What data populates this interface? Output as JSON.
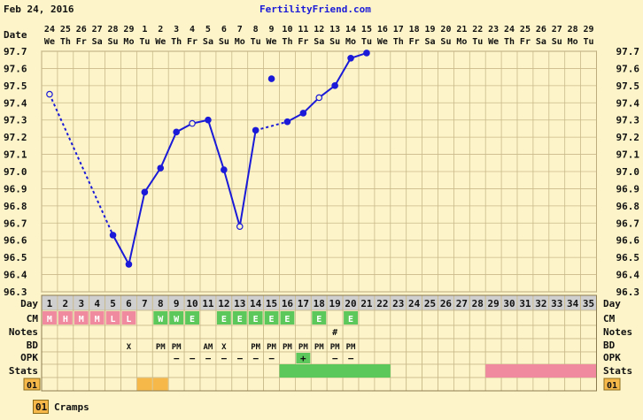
{
  "header": {
    "date": "Feb 24, 2016",
    "site": "FertilityFriend.com"
  },
  "row_labels": {
    "date": "Date",
    "day": "Day",
    "cm": "CM",
    "notes": "Notes",
    "bd": "BD",
    "opk": "OPK",
    "stats": "Stats",
    "custom": "01"
  },
  "legend": {
    "badge": "01",
    "label": "Cramps"
  },
  "colors": {
    "background": "#fdf5c9",
    "line": "#1a1ad8",
    "grid": "#c9b98a",
    "menstrual": "#f08a9e",
    "green": "#5cc85c",
    "orange": "#f7b84a",
    "day_row": "#cfcfcf",
    "link": "#1a1ad8"
  },
  "chart_data": {
    "type": "line",
    "title": "",
    "xlabel": "",
    "ylabel": "",
    "ylim": [
      96.3,
      97.7
    ],
    "y_ticks": [
      "97.7",
      "97.6",
      "97.5",
      "97.4",
      "97.3",
      "97.2",
      "97.1",
      "97.0",
      "96.9",
      "96.8",
      "96.7",
      "96.6",
      "96.5",
      "96.4",
      "96.3"
    ],
    "dates": [
      "24",
      "25",
      "26",
      "27",
      "28",
      "29",
      "1",
      "2",
      "3",
      "4",
      "5",
      "6",
      "7",
      "8",
      "9",
      "10",
      "11",
      "12",
      "13",
      "14",
      "15",
      "16",
      "17",
      "18",
      "19",
      "20",
      "21",
      "22",
      "23",
      "24",
      "25",
      "26",
      "27",
      "28",
      "29"
    ],
    "weekdays": [
      "We",
      "Th",
      "Fr",
      "Sa",
      "Su",
      "Mo",
      "Tu",
      "We",
      "Th",
      "Fr",
      "Sa",
      "Su",
      "Mo",
      "Tu",
      "We",
      "Th",
      "Fr",
      "Sa",
      "Su",
      "Mo",
      "Tu",
      "We",
      "Th",
      "Fr",
      "Sa",
      "Su",
      "Mo",
      "Tu",
      "We",
      "Th",
      "Fr",
      "Sa",
      "Su",
      "Mo",
      "Tu"
    ],
    "series": [
      {
        "points": [
          {
            "day": 1,
            "temp": 97.45,
            "open": true
          },
          {
            "day": 5,
            "temp": 96.63,
            "open": false
          },
          {
            "day": 6,
            "temp": 96.46,
            "open": false
          },
          {
            "day": 7,
            "temp": 96.88,
            "open": false
          },
          {
            "day": 8,
            "temp": 97.02,
            "open": false
          },
          {
            "day": 9,
            "temp": 97.23,
            "open": false
          },
          {
            "day": 10,
            "temp": 97.28,
            "open": true
          },
          {
            "day": 11,
            "temp": 97.3,
            "open": false
          },
          {
            "day": 12,
            "temp": 97.01,
            "open": false
          },
          {
            "day": 13,
            "temp": 96.68,
            "open": true
          },
          {
            "day": 14,
            "temp": 97.24,
            "open": false
          },
          {
            "day": 16,
            "temp": 97.29,
            "open": false
          },
          {
            "day": 17,
            "temp": 97.34,
            "open": false
          },
          {
            "day": 18,
            "temp": 97.43,
            "open": true
          },
          {
            "day": 19,
            "temp": 97.5,
            "open": false
          },
          {
            "day": 20,
            "temp": 97.66,
            "open": false
          },
          {
            "day": 21,
            "temp": 97.69,
            "open": false
          }
        ],
        "segments": [
          {
            "from": 1,
            "to": 5,
            "style": "dashed"
          },
          {
            "from": 5,
            "to": 6,
            "style": "solid"
          },
          {
            "from": 6,
            "to": 7,
            "style": "solid"
          },
          {
            "from": 7,
            "to": 8,
            "style": "solid"
          },
          {
            "from": 8,
            "to": 9,
            "style": "solid"
          },
          {
            "from": 9,
            "to": 10,
            "style": "solid"
          },
          {
            "from": 10,
            "to": 11,
            "style": "solid"
          },
          {
            "from": 11,
            "to": 12,
            "style": "solid"
          },
          {
            "from": 12,
            "to": 13,
            "style": "solid"
          },
          {
            "from": 13,
            "to": 14,
            "style": "solid"
          },
          {
            "from": 14,
            "to": 16,
            "style": "dashed"
          },
          {
            "from": 16,
            "to": 17,
            "style": "solid"
          },
          {
            "from": 17,
            "to": 18,
            "style": "solid"
          },
          {
            "from": 18,
            "to": 19,
            "style": "solid"
          },
          {
            "from": 19,
            "to": 20,
            "style": "solid"
          },
          {
            "from": 20,
            "to": 21,
            "style": "solid"
          }
        ]
      }
    ],
    "isolated_points": [
      {
        "day": 15,
        "temp": 97.54,
        "open": false
      }
    ],
    "cycle_days": [
      "1",
      "2",
      "3",
      "4",
      "5",
      "6",
      "7",
      "8",
      "9",
      "10",
      "11",
      "12",
      "13",
      "14",
      "15",
      "16",
      "17",
      "18",
      "19",
      "20",
      "21",
      "22",
      "23",
      "24",
      "25",
      "26",
      "27",
      "28",
      "29",
      "30",
      "31",
      "32",
      "33",
      "34",
      "35"
    ],
    "cm": [
      {
        "day": 1,
        "code": "M",
        "kind": "menstrual"
      },
      {
        "day": 2,
        "code": "H",
        "kind": "menstrual"
      },
      {
        "day": 3,
        "code": "M",
        "kind": "menstrual"
      },
      {
        "day": 4,
        "code": "M",
        "kind": "menstrual"
      },
      {
        "day": 5,
        "code": "L",
        "kind": "menstrual"
      },
      {
        "day": 6,
        "code": "L",
        "kind": "menstrual"
      },
      {
        "day": 8,
        "code": "W",
        "kind": "green"
      },
      {
        "day": 9,
        "code": "W",
        "kind": "green"
      },
      {
        "day": 10,
        "code": "E",
        "kind": "green"
      },
      {
        "day": 12,
        "code": "E",
        "kind": "green"
      },
      {
        "day": 13,
        "code": "E",
        "kind": "green"
      },
      {
        "day": 14,
        "code": "E",
        "kind": "green"
      },
      {
        "day": 15,
        "code": "E",
        "kind": "green"
      },
      {
        "day": 16,
        "code": "E",
        "kind": "green"
      },
      {
        "day": 18,
        "code": "E",
        "kind": "green"
      },
      {
        "day": 20,
        "code": "E",
        "kind": "green"
      }
    ],
    "notes": [
      {
        "day": 19,
        "text": "#"
      }
    ],
    "bd": [
      {
        "day": 6,
        "text": "X"
      },
      {
        "day": 8,
        "text": "PM"
      },
      {
        "day": 9,
        "text": "PM"
      },
      {
        "day": 11,
        "text": "AM"
      },
      {
        "day": 12,
        "text": "X"
      },
      {
        "day": 14,
        "text": "PM"
      },
      {
        "day": 15,
        "text": "PM"
      },
      {
        "day": 16,
        "text": "PM"
      },
      {
        "day": 17,
        "text": "PM"
      },
      {
        "day": 18,
        "text": "PM"
      },
      {
        "day": 19,
        "text": "PM"
      },
      {
        "day": 20,
        "text": "PM"
      }
    ],
    "opk": [
      {
        "day": 9,
        "text": "−"
      },
      {
        "day": 10,
        "text": "−"
      },
      {
        "day": 11,
        "text": "−"
      },
      {
        "day": 12,
        "text": "−"
      },
      {
        "day": 13,
        "text": "−"
      },
      {
        "day": 14,
        "text": "−"
      },
      {
        "day": 15,
        "text": "−"
      },
      {
        "day": 17,
        "text": "+",
        "highlight": true
      },
      {
        "day": 19,
        "text": "−"
      },
      {
        "day": 20,
        "text": "−"
      }
    ],
    "stats": [
      {
        "from": 16,
        "to": 22,
        "kind": "green"
      },
      {
        "from": 29,
        "to": 35,
        "kind": "menstrual"
      }
    ],
    "custom_row": [
      {
        "day": 7,
        "kind": "orange"
      },
      {
        "day": 8,
        "kind": "orange"
      }
    ]
  }
}
